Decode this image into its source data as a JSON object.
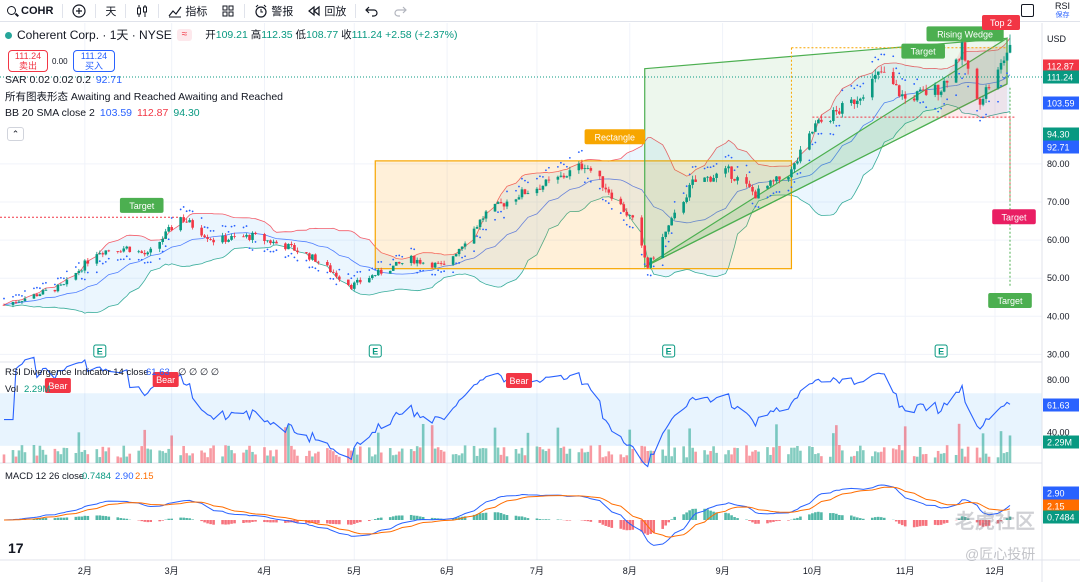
{
  "topbar": {
    "symbol": "COHR",
    "interval": "天",
    "indicators": "指标",
    "alerts": "警报",
    "replay": "回放",
    "rsi_label": "RSI",
    "rsi_sub": "保存"
  },
  "legend": {
    "title": "Coherent Corp. · 1天 · NYSE",
    "eq": "≈",
    "ohlc": {
      "o_label": "开",
      "o": "109.21",
      "h_label": "高",
      "h": "112.35",
      "l_label": "低",
      "l": "108.77",
      "c_label": "收",
      "c": "111.24",
      "chg": "+2.58 (+2.37%)"
    },
    "sell": {
      "price": "111.24",
      "label": "卖出"
    },
    "spread": "0.00",
    "buy": {
      "price": "111.24",
      "label": "买入"
    },
    "sar": {
      "label": "SAR 0.02 0.02 0.2",
      "value": "92.71"
    },
    "patterns": "所有图表形态 Awaiting and Reached Awaiting and Reached",
    "bb": {
      "label": "BB 20 SMA close 2",
      "basis": "103.59",
      "upper": "112.87",
      "lower": "94.30"
    }
  },
  "panes": {
    "rsi_label": "RSI Divergence Indicator",
    "rsi_params": "14 close",
    "rsi_value": "61.63",
    "rsi_extra": "∅ ∅ ∅ ∅",
    "vol_label": "Vol",
    "vol_value": "2.29M",
    "macd_label": "MACD 12 26 close",
    "macd_hist": "0.7484",
    "macd_line": "2.90",
    "macd_signal": "2.15"
  },
  "annotations": {
    "rectangle": "Rectangle",
    "rising_wedge": "Rising Wedge",
    "top2": "Top 2",
    "target": "Target",
    "bear": "Bear",
    "earnings": "E"
  },
  "watermark": {
    "w1": "老虎社区",
    "w2": "@匠心投研"
  },
  "colors": {
    "up": "#089981",
    "down": "#f23645",
    "bb_upper": "#f23645",
    "bb_basis": "#2962ff",
    "bb_lower": "#089981",
    "sar": "#2962ff",
    "rsi": "#2962ff",
    "macd": "#2962ff",
    "signal": "#ff6d00"
  },
  "chart_data": {
    "type": "candlestick",
    "x_range": [
      "2024-01-05",
      "2024-12-06"
    ],
    "xticks": [
      "2月",
      "3月",
      "4月",
      "5月",
      "6月",
      "7月",
      "8月",
      "9月",
      "10月",
      "11月",
      "12月"
    ],
    "price_ticks": [
      "80.00",
      "70.00",
      "60.00",
      "50.00",
      "40.00",
      "30.00"
    ],
    "ylim": [
      28,
      117
    ],
    "price_anchors": [
      [
        "2024-01-05",
        43
      ],
      [
        "2024-01-25",
        48
      ],
      [
        "2024-02-05",
        57
      ],
      [
        "2024-02-15",
        58
      ],
      [
        "2024-02-22",
        56
      ],
      [
        "2024-03-04",
        66
      ],
      [
        "2024-03-15",
        60
      ],
      [
        "2024-03-28",
        61
      ],
      [
        "2024-04-10",
        58
      ],
      [
        "2024-04-18",
        55
      ],
      [
        "2024-04-30",
        48
      ],
      [
        "2024-05-08",
        51
      ],
      [
        "2024-05-20",
        55
      ],
      [
        "2024-05-31",
        53
      ],
      [
        "2024-06-06",
        59
      ],
      [
        "2024-06-14",
        67
      ],
      [
        "2024-06-25",
        72
      ],
      [
        "2024-07-08",
        76
      ],
      [
        "2024-07-17",
        80
      ],
      [
        "2024-07-25",
        73
      ],
      [
        "2024-08-02",
        65
      ],
      [
        "2024-08-07",
        53
      ],
      [
        "2024-08-13",
        62
      ],
      [
        "2024-08-22",
        75
      ],
      [
        "2024-09-03",
        78
      ],
      [
        "2024-09-12",
        72
      ],
      [
        "2024-09-24",
        78
      ],
      [
        "2024-10-02",
        90
      ],
      [
        "2024-10-14",
        96
      ],
      [
        "2024-10-24",
        104
      ],
      [
        "2024-11-01",
        97
      ],
      [
        "2024-11-13",
        100
      ],
      [
        "2024-11-20",
        110
      ],
      [
        "2024-11-25",
        96
      ],
      [
        "2024-12-02",
        104
      ],
      [
        "2024-12-06",
        111.24
      ]
    ],
    "rsi": {
      "ylim": [
        20,
        90
      ],
      "ticks": [
        "80.00",
        "40.00"
      ],
      "overbought": 70,
      "oversold": 30,
      "last": 61.63
    },
    "volume": {
      "last": "2.29M"
    },
    "macd": {
      "last_macd": 2.9,
      "last_signal": 2.15,
      "last_hist": 0.7484
    }
  }
}
